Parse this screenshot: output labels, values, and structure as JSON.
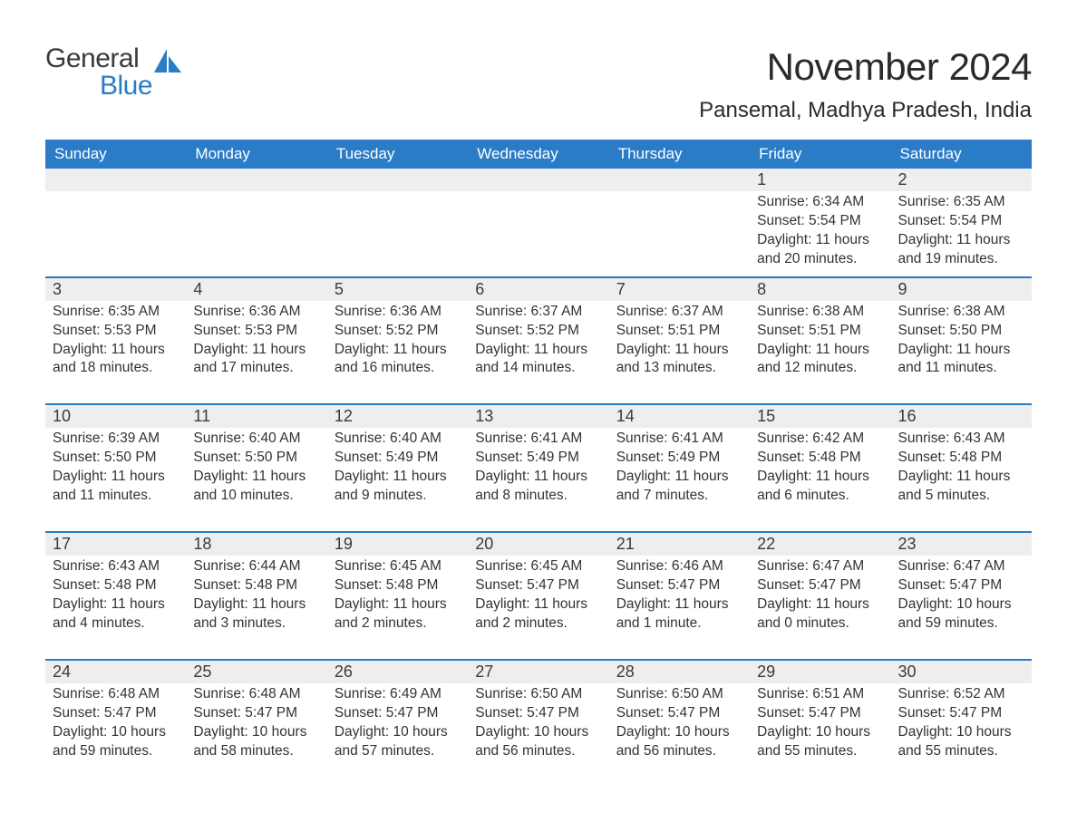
{
  "brand": {
    "word1": "General",
    "word2": "Blue",
    "word1_color": "#3a3a3a",
    "word2_color": "#2a7cc7",
    "sail_color": "#2a7cc7"
  },
  "title": "November 2024",
  "location": "Pansemal, Madhya Pradesh, India",
  "colors": {
    "header_bg": "#2a7cc7",
    "header_text": "#ffffff",
    "row_border": "#2a7cc7",
    "daynum_bg": "#eeeeee",
    "body_text": "#333333",
    "page_bg": "#ffffff"
  },
  "typography": {
    "title_fontsize": 42,
    "location_fontsize": 24,
    "weekday_fontsize": 17,
    "daynum_fontsize": 18,
    "details_fontsize": 15.5
  },
  "layout": {
    "columns": 7,
    "rows": 5,
    "week_row_border_width": 2
  },
  "weekdays": [
    "Sunday",
    "Monday",
    "Tuesday",
    "Wednesday",
    "Thursday",
    "Friday",
    "Saturday"
  ],
  "labels": {
    "sunrise": "Sunrise:",
    "sunset": "Sunset:",
    "daylight": "Daylight:"
  },
  "weeks": [
    [
      null,
      null,
      null,
      null,
      null,
      {
        "day": "1",
        "sunrise": "6:34 AM",
        "sunset": "5:54 PM",
        "daylight": "11 hours and 20 minutes."
      },
      {
        "day": "2",
        "sunrise": "6:35 AM",
        "sunset": "5:54 PM",
        "daylight": "11 hours and 19 minutes."
      }
    ],
    [
      {
        "day": "3",
        "sunrise": "6:35 AM",
        "sunset": "5:53 PM",
        "daylight": "11 hours and 18 minutes."
      },
      {
        "day": "4",
        "sunrise": "6:36 AM",
        "sunset": "5:53 PM",
        "daylight": "11 hours and 17 minutes."
      },
      {
        "day": "5",
        "sunrise": "6:36 AM",
        "sunset": "5:52 PM",
        "daylight": "11 hours and 16 minutes."
      },
      {
        "day": "6",
        "sunrise": "6:37 AM",
        "sunset": "5:52 PM",
        "daylight": "11 hours and 14 minutes."
      },
      {
        "day": "7",
        "sunrise": "6:37 AM",
        "sunset": "5:51 PM",
        "daylight": "11 hours and 13 minutes."
      },
      {
        "day": "8",
        "sunrise": "6:38 AM",
        "sunset": "5:51 PM",
        "daylight": "11 hours and 12 minutes."
      },
      {
        "day": "9",
        "sunrise": "6:38 AM",
        "sunset": "5:50 PM",
        "daylight": "11 hours and 11 minutes."
      }
    ],
    [
      {
        "day": "10",
        "sunrise": "6:39 AM",
        "sunset": "5:50 PM",
        "daylight": "11 hours and 11 minutes."
      },
      {
        "day": "11",
        "sunrise": "6:40 AM",
        "sunset": "5:50 PM",
        "daylight": "11 hours and 10 minutes."
      },
      {
        "day": "12",
        "sunrise": "6:40 AM",
        "sunset": "5:49 PM",
        "daylight": "11 hours and 9 minutes."
      },
      {
        "day": "13",
        "sunrise": "6:41 AM",
        "sunset": "5:49 PM",
        "daylight": "11 hours and 8 minutes."
      },
      {
        "day": "14",
        "sunrise": "6:41 AM",
        "sunset": "5:49 PM",
        "daylight": "11 hours and 7 minutes."
      },
      {
        "day": "15",
        "sunrise": "6:42 AM",
        "sunset": "5:48 PM",
        "daylight": "11 hours and 6 minutes."
      },
      {
        "day": "16",
        "sunrise": "6:43 AM",
        "sunset": "5:48 PM",
        "daylight": "11 hours and 5 minutes."
      }
    ],
    [
      {
        "day": "17",
        "sunrise": "6:43 AM",
        "sunset": "5:48 PM",
        "daylight": "11 hours and 4 minutes."
      },
      {
        "day": "18",
        "sunrise": "6:44 AM",
        "sunset": "5:48 PM",
        "daylight": "11 hours and 3 minutes."
      },
      {
        "day": "19",
        "sunrise": "6:45 AM",
        "sunset": "5:48 PM",
        "daylight": "11 hours and 2 minutes."
      },
      {
        "day": "20",
        "sunrise": "6:45 AM",
        "sunset": "5:47 PM",
        "daylight": "11 hours and 2 minutes."
      },
      {
        "day": "21",
        "sunrise": "6:46 AM",
        "sunset": "5:47 PM",
        "daylight": "11 hours and 1 minute."
      },
      {
        "day": "22",
        "sunrise": "6:47 AM",
        "sunset": "5:47 PM",
        "daylight": "11 hours and 0 minutes."
      },
      {
        "day": "23",
        "sunrise": "6:47 AM",
        "sunset": "5:47 PM",
        "daylight": "10 hours and 59 minutes."
      }
    ],
    [
      {
        "day": "24",
        "sunrise": "6:48 AM",
        "sunset": "5:47 PM",
        "daylight": "10 hours and 59 minutes."
      },
      {
        "day": "25",
        "sunrise": "6:48 AM",
        "sunset": "5:47 PM",
        "daylight": "10 hours and 58 minutes."
      },
      {
        "day": "26",
        "sunrise": "6:49 AM",
        "sunset": "5:47 PM",
        "daylight": "10 hours and 57 minutes."
      },
      {
        "day": "27",
        "sunrise": "6:50 AM",
        "sunset": "5:47 PM",
        "daylight": "10 hours and 56 minutes."
      },
      {
        "day": "28",
        "sunrise": "6:50 AM",
        "sunset": "5:47 PM",
        "daylight": "10 hours and 56 minutes."
      },
      {
        "day": "29",
        "sunrise": "6:51 AM",
        "sunset": "5:47 PM",
        "daylight": "10 hours and 55 minutes."
      },
      {
        "day": "30",
        "sunrise": "6:52 AM",
        "sunset": "5:47 PM",
        "daylight": "10 hours and 55 minutes."
      }
    ]
  ]
}
